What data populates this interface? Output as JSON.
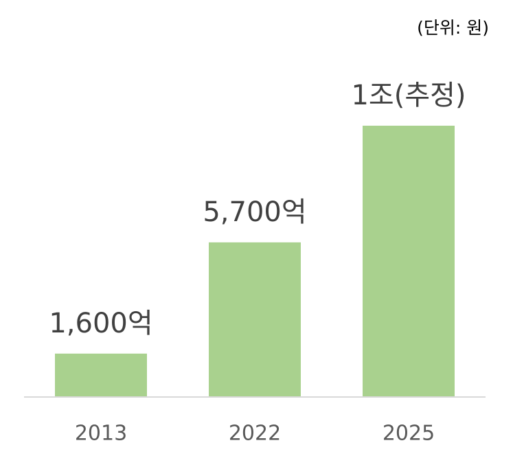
{
  "chart_data": {
    "type": "bar",
    "unit_note": "(단위: 원)",
    "categories": [
      "2013",
      "2022",
      "2025"
    ],
    "values": [
      160000000000,
      570000000000,
      1000000000000
    ],
    "value_labels": [
      "1,600억",
      "5,700억",
      "1조(추정)"
    ],
    "color": "#a9d18e"
  }
}
